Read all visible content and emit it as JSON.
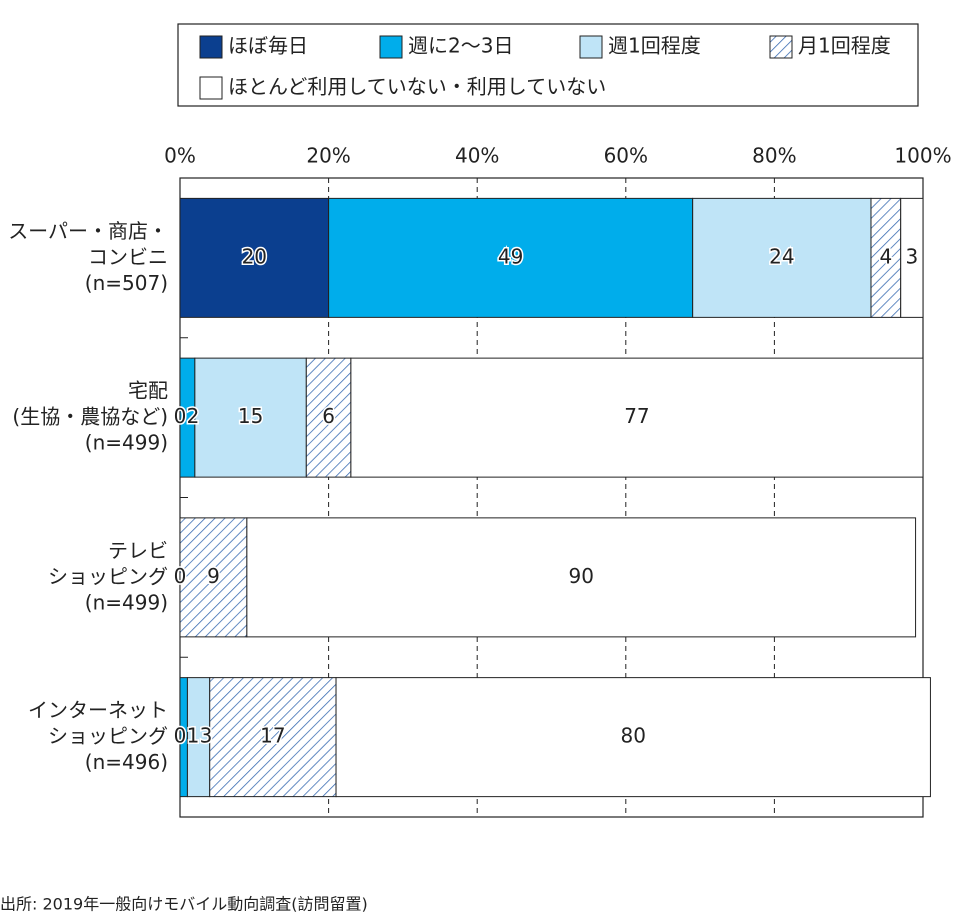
{
  "chart_data": {
    "type": "stacked-bar-horizontal",
    "categories": [
      "スーパー・商店・\nコンビニ\n(n=507)",
      "宅配\n(生協・農協など)\n(n=499)",
      "テレビ\nショッピング\n(n=499)",
      "インターネット\nショッピング\n(n=496)"
    ],
    "series": [
      {
        "name": "ほぼ毎日",
        "color": "#0b3f8f",
        "values": [
          20,
          0,
          null,
          0
        ]
      },
      {
        "name": "週に2～3日",
        "color": "#00adeb",
        "values": [
          49,
          2,
          null,
          1
        ]
      },
      {
        "name": "週1回程度",
        "color": "#bfe4f7",
        "values": [
          24,
          15,
          0,
          3
        ]
      },
      {
        "name": "月1回程度",
        "color": "#3b6db3",
        "hatch": true,
        "values": [
          4,
          6,
          9,
          17
        ]
      },
      {
        "name": "ほとんど利用していない・利用していない",
        "color": "#ffffff",
        "values": [
          3,
          77,
          90,
          80
        ]
      }
    ],
    "xlim": [
      0,
      100
    ],
    "xticks": [
      {
        "value": 0,
        "label": "0%"
      },
      {
        "value": 20,
        "label": "20%"
      },
      {
        "value": 40,
        "label": "40%"
      },
      {
        "value": 60,
        "label": "60%"
      },
      {
        "value": 80,
        "label": "80%"
      },
      {
        "value": 100,
        "label": "100%"
      }
    ],
    "grid": true,
    "source": "出所: 2019年一般向けモバイル動向調査(訪問留置)"
  }
}
